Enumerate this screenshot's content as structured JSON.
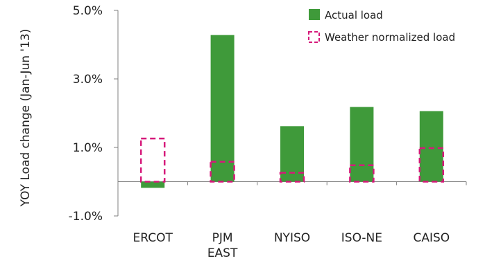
{
  "chart_data": {
    "type": "bar",
    "title": "",
    "xlabel": "",
    "ylabel": "YOY Load change (Jan-Jun '13)",
    "categories": [
      [
        "ERCOT"
      ],
      [
        "PJM",
        "EAST"
      ],
      [
        "NYISO"
      ],
      [
        "ISO-NE"
      ],
      [
        "CAISO"
      ]
    ],
    "y_ticks": [
      "5.0%",
      "3.0%",
      "1.0%",
      "-1.0%"
    ],
    "y_tick_values": [
      5.0,
      3.0,
      1.0,
      -1.0
    ],
    "ylim": [
      -1.0,
      5.0
    ],
    "grid": false,
    "legend_position": "top-right",
    "series": [
      {
        "name": "Actual load",
        "style": "solid",
        "color": "#3f9a3a",
        "values": [
          -0.18,
          4.28,
          1.62,
          2.18,
          2.06
        ]
      },
      {
        "name": "Weather normalized load",
        "style": "dashed-outline",
        "color": "#d6197a",
        "values": [
          1.26,
          0.58,
          0.26,
          0.48,
          0.98
        ]
      }
    ]
  }
}
